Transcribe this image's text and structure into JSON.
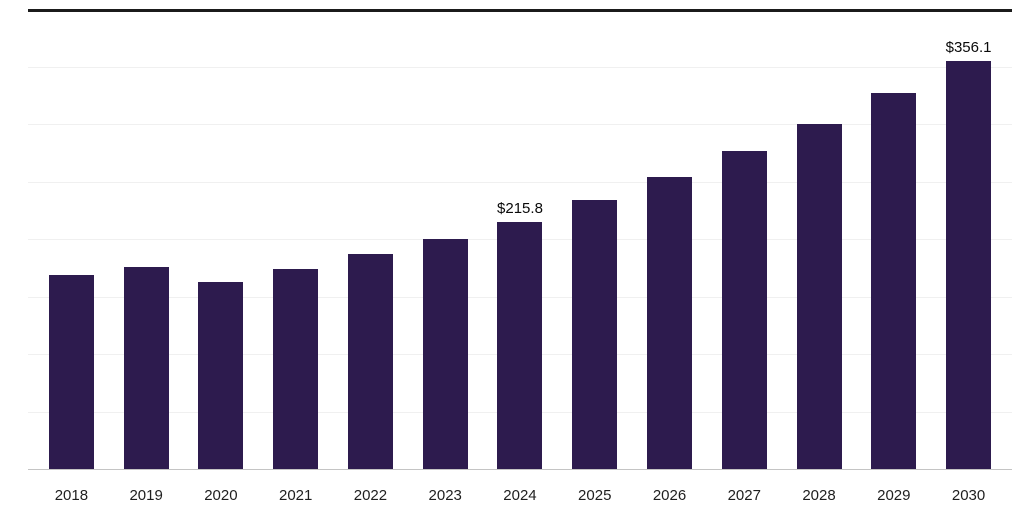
{
  "chart_data": {
    "type": "bar",
    "title": "",
    "xlabel": "",
    "ylabel": "",
    "categories": [
      "2018",
      "2019",
      "2020",
      "2021",
      "2022",
      "2023",
      "2024",
      "2025",
      "2026",
      "2027",
      "2028",
      "2029",
      "2030"
    ],
    "values": [
      170.0,
      176.5,
      163.9,
      174.7,
      187.5,
      200.5,
      215.8,
      234.6,
      255.0,
      277.2,
      301.3,
      327.6,
      356.1
    ],
    "data_labels": [
      "",
      "",
      "",
      "",
      "",
      "",
      "$215.8",
      "",
      "",
      "",
      "",
      "",
      "$356.1"
    ],
    "ylim": [
      0,
      400
    ],
    "grid_step": 50,
    "grid": true,
    "legend": "none",
    "bar_color": "#2d1b4e",
    "gridline_color": "#f0f0f0",
    "axis_line_color": "#c4c4c4",
    "top_border_color": "#1b1b1b",
    "label_color": "#0a0a0a",
    "tick_color": "#1f1f1f"
  }
}
